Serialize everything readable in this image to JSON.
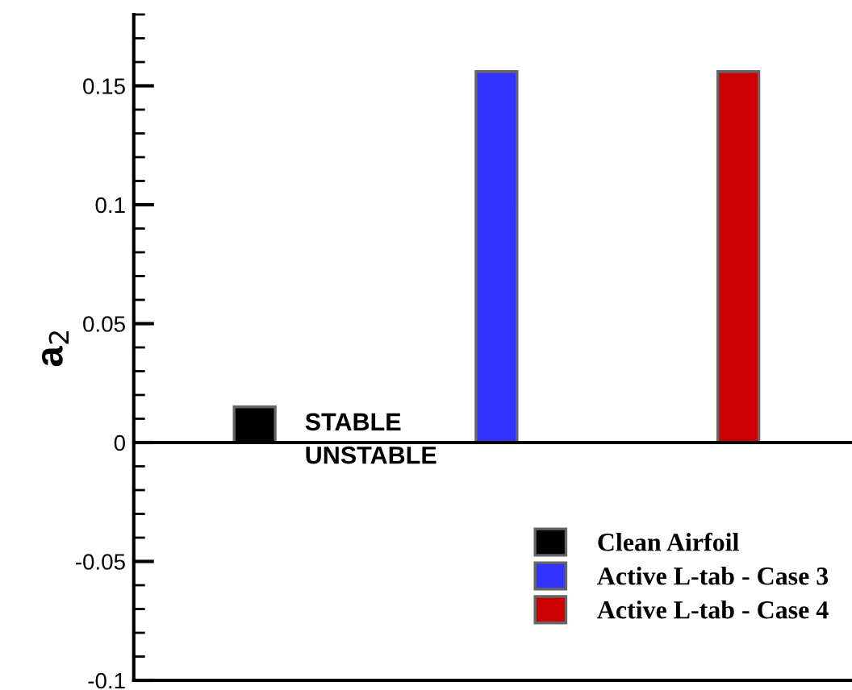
{
  "chart_data": {
    "type": "bar",
    "ylabel": "a$_{2}$",
    "categories": [
      null,
      null,
      null
    ],
    "series": [
      {
        "name": "Clean Airfoil",
        "color": "#000000",
        "values": [
          0.015,
          null,
          null
        ]
      },
      {
        "name": "Active L-tab - Case 3",
        "color": "#3333ff",
        "values": [
          null,
          0.156,
          null
        ]
      },
      {
        "name": "Active L-tab - Case 4",
        "color": "#cc0000",
        "values": [
          null,
          null,
          0.156
        ]
      }
    ],
    "ylim": [
      -0.1,
      0.18
    ],
    "yticks": [
      -0.1,
      -0.05,
      0,
      0.05,
      0.1,
      0.15
    ],
    "ref_lines": [
      {
        "axis": "y",
        "value": 0,
        "color": "#000000"
      }
    ],
    "annotations": [
      "STABLE",
      "UNSTABLE"
    ],
    "legend": "bottom right",
    "grid": false
  }
}
